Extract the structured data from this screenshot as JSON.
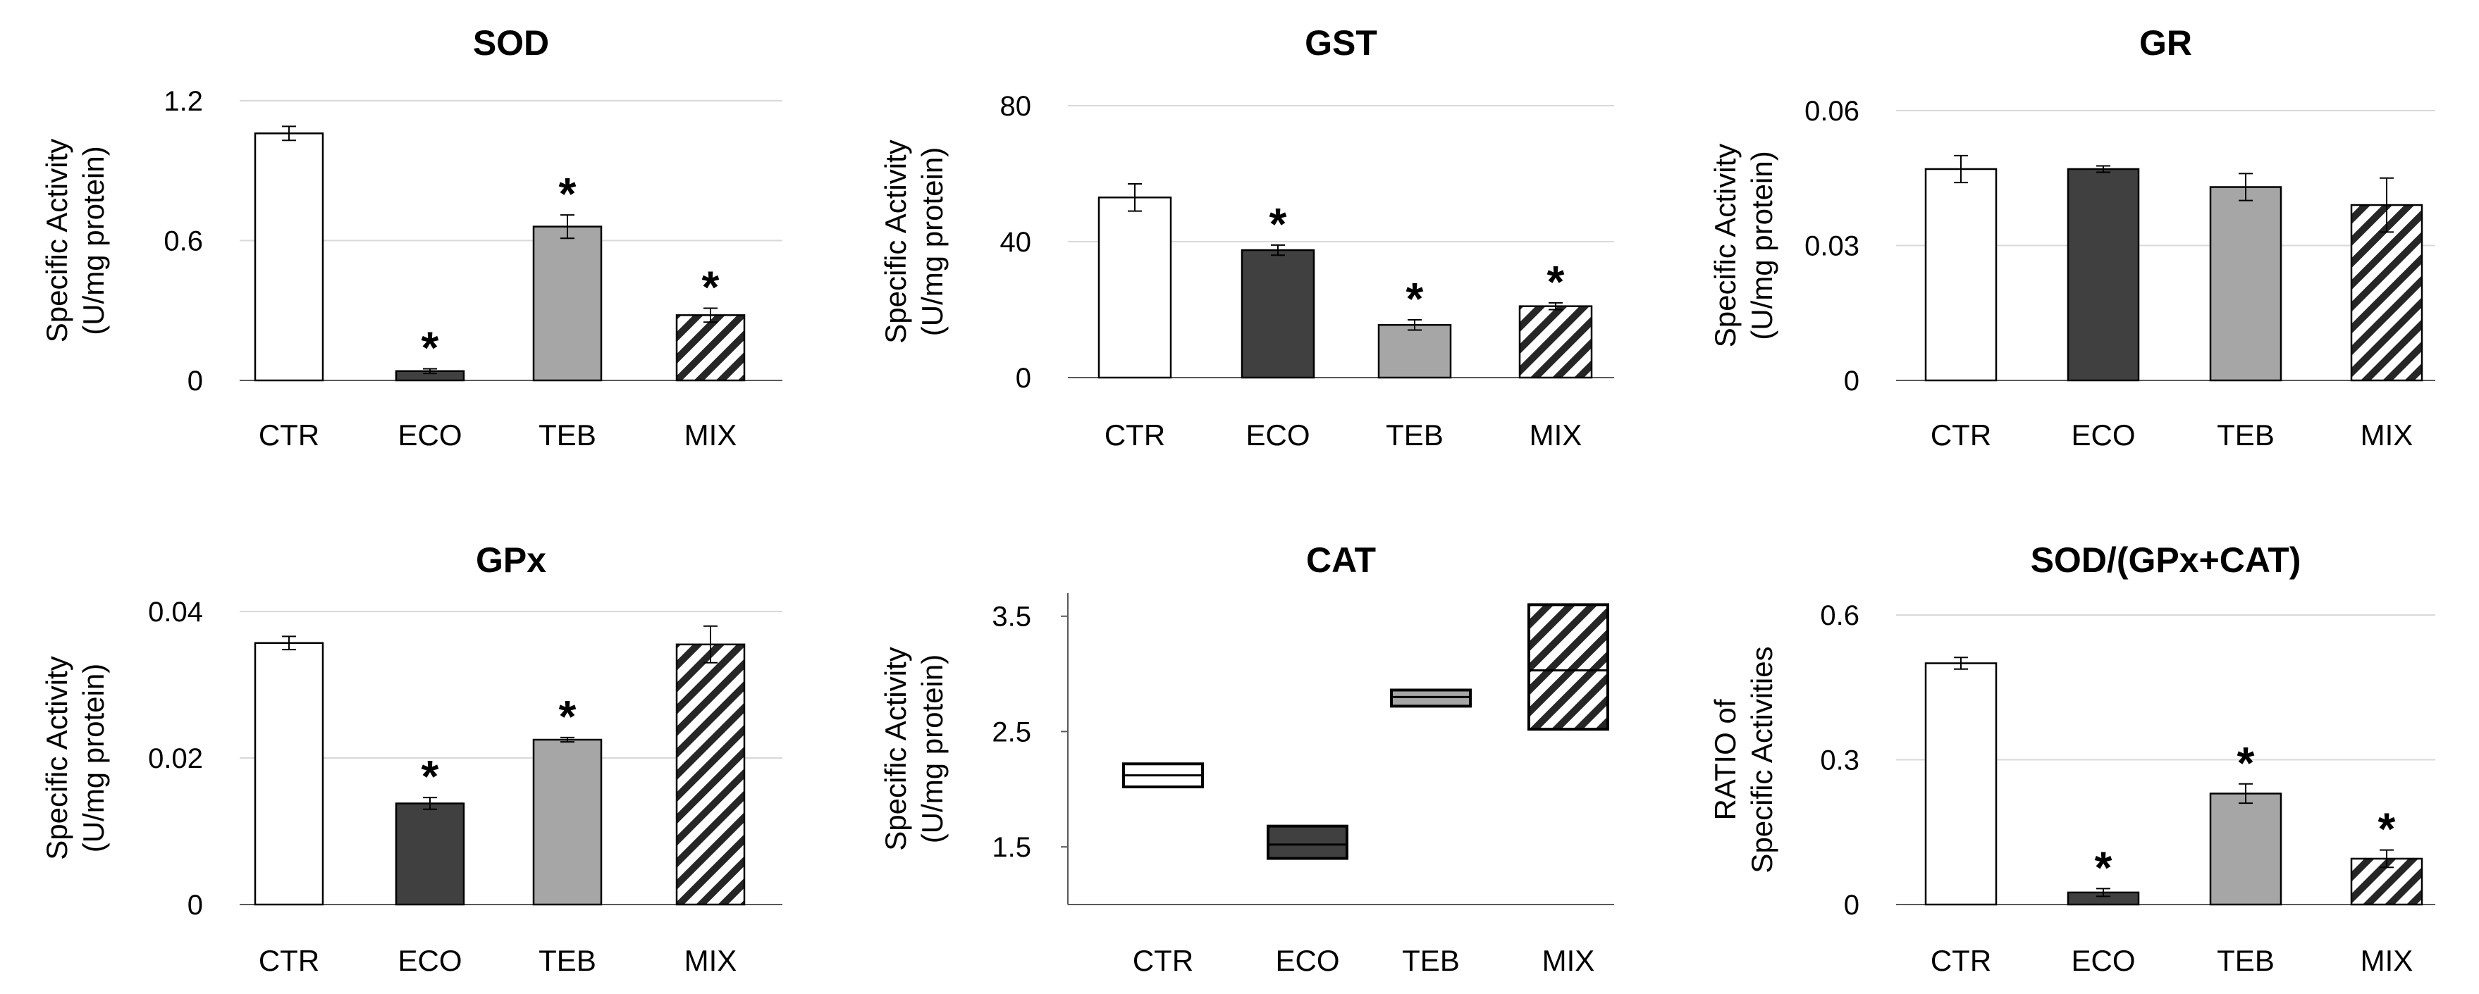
{
  "colors": {
    "CTR": "#ffffff",
    "ECO": "#404040",
    "TEB": "#a6a6a6",
    "MIX_hatch": "#262626",
    "gridline": "#d9d9d9",
    "axis": "#595959",
    "text": "#000000"
  },
  "chart_data": [
    {
      "id": "sod",
      "type": "bar",
      "title": "SOD",
      "ylabel_lines": [
        "Specific Activity",
        "(U/mg protein)"
      ],
      "categories": [
        "CTR",
        "ECO",
        "TEB",
        "MIX"
      ],
      "values": [
        1.06,
        0.04,
        0.66,
        0.28
      ],
      "errors": [
        0.03,
        0.01,
        0.05,
        0.03
      ],
      "significant": [
        false,
        true,
        true,
        true
      ],
      "ylim": [
        0,
        1.2
      ],
      "yticks": [
        0,
        0.6,
        1.2
      ],
      "ytick_labels": [
        "0",
        "0.6",
        "1.2"
      ]
    },
    {
      "id": "gst",
      "type": "bar",
      "title": "GST",
      "ylabel_lines": [
        "Specific Activity",
        "(U/mg protein)"
      ],
      "categories": [
        "CTR",
        "ECO",
        "TEB",
        "MIX"
      ],
      "values": [
        53,
        37.5,
        15.5,
        21
      ],
      "errors": [
        4,
        1.5,
        1.5,
        1
      ],
      "significant": [
        false,
        true,
        true,
        true
      ],
      "ylim": [
        0,
        80
      ],
      "yticks": [
        0,
        40,
        80
      ],
      "ytick_labels": [
        "0",
        "40",
        "80"
      ]
    },
    {
      "id": "gr",
      "type": "bar",
      "title": "GR",
      "ylabel_lines": [
        "Specific Activity",
        "(U/mg protein)"
      ],
      "categories": [
        "CTR",
        "ECO",
        "TEB",
        "MIX"
      ],
      "values": [
        0.047,
        0.047,
        0.043,
        0.039
      ],
      "errors": [
        0.003,
        0.0007,
        0.003,
        0.006
      ],
      "significant": [
        false,
        false,
        false,
        false
      ],
      "ylim": [
        0,
        0.06
      ],
      "yticks": [
        0,
        0.03,
        0.06
      ],
      "ytick_labels": [
        "0",
        "0.03",
        "0.06"
      ]
    },
    {
      "id": "gpx",
      "type": "bar",
      "title": "GPx",
      "ylabel_lines": [
        "Specific Activity",
        "(U/mg protein)"
      ],
      "categories": [
        "CTR",
        "ECO",
        "TEB",
        "MIX"
      ],
      "values": [
        0.0357,
        0.0138,
        0.0225,
        0.0355
      ],
      "errors": [
        0.0009,
        0.0008,
        0.0003,
        0.0025
      ],
      "significant": [
        false,
        true,
        true,
        false
      ],
      "ylim": [
        0,
        0.04
      ],
      "yticks": [
        0,
        0.02,
        0.04
      ],
      "ytick_labels": [
        "0",
        "0.02",
        "0.04"
      ]
    },
    {
      "id": "cat",
      "type": "floating-box",
      "title": "CAT",
      "ylabel_lines": [
        "Specific Activity",
        "(U/mg protein)"
      ],
      "categories": [
        "CTR",
        "ECO",
        "TEB",
        "MIX"
      ],
      "low": [
        2.02,
        1.4,
        2.72,
        2.52
      ],
      "mid": [
        2.12,
        1.52,
        2.8,
        3.03
      ],
      "high": [
        2.22,
        1.68,
        2.86,
        3.6
      ],
      "ylim": [
        1,
        3.7
      ],
      "yticks": [
        1.5,
        2.5,
        3.5
      ],
      "ytick_labels": [
        "1.5",
        "2.5",
        "3.5"
      ]
    },
    {
      "id": "ratio",
      "type": "bar",
      "title": "SOD/(GPx+CAT)",
      "ylabel_lines": [
        "RATIO of",
        "Specific Activities"
      ],
      "categories": [
        "CTR",
        "ECO",
        "TEB",
        "MIX"
      ],
      "values": [
        0.5,
        0.025,
        0.23,
        0.095
      ],
      "errors": [
        0.012,
        0.008,
        0.02,
        0.018
      ],
      "significant": [
        false,
        true,
        true,
        true
      ],
      "ylim": [
        0,
        0.6
      ],
      "yticks": [
        0,
        0.3,
        0.6
      ],
      "ytick_labels": [
        "0",
        "0.3",
        "0.6"
      ]
    }
  ],
  "significance_marker": "*"
}
